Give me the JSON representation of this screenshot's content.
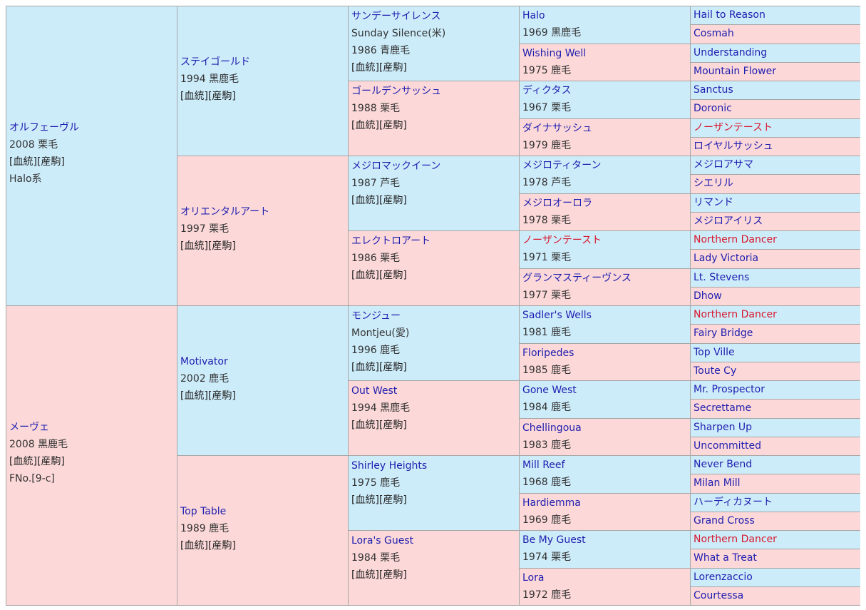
{
  "links": {
    "pedigree": "血統",
    "offspring": "産駒",
    "open": "[",
    "close": "]"
  },
  "gen1": [
    {
      "name": "オルフェーヴル",
      "info": "2008 栗毛",
      "extra": "Halo系"
    },
    {
      "name": "メーヴェ",
      "info": "2008 黒鹿毛",
      "extra": "FNo.[9-c]"
    }
  ],
  "gen2": [
    {
      "name": "ステイゴールド",
      "info": "1994 黒鹿毛"
    },
    {
      "name": "オリエンタルアート",
      "info": "1997 栗毛"
    },
    {
      "name": "Motivator",
      "info": "2002 鹿毛"
    },
    {
      "name": "Top Table",
      "info": "1989 鹿毛"
    }
  ],
  "gen3": [
    {
      "name": "サンデーサイレンス",
      "alt": "Sunday Silence(米)",
      "info": "1986 青鹿毛"
    },
    {
      "name": "ゴールデンサッシュ",
      "info": "1988 栗毛"
    },
    {
      "name": "メジロマックイーン",
      "info": "1987 芦毛"
    },
    {
      "name": "エレクトロアート",
      "info": "1986 栗毛"
    },
    {
      "name": "モンジュー",
      "alt": "Montjeu(愛)",
      "info": "1996 鹿毛"
    },
    {
      "name": "Out West",
      "info": "1994 黒鹿毛"
    },
    {
      "name": "Shirley Heights",
      "info": "1975 鹿毛"
    },
    {
      "name": "Lora's Guest",
      "info": "1984 栗毛"
    }
  ],
  "gen4": [
    {
      "name": "Halo",
      "info": "1969 黒鹿毛"
    },
    {
      "name": "Wishing Well",
      "info": "1975 鹿毛"
    },
    {
      "name": "ディクタス",
      "info": "1967 栗毛"
    },
    {
      "name": "ダイナサッシュ",
      "info": "1979 鹿毛"
    },
    {
      "name": "メジロティターン",
      "info": "1978 芦毛"
    },
    {
      "name": "メジロオーロラ",
      "info": "1978 栗毛"
    },
    {
      "name": "ノーザンテースト",
      "info": "1971 栗毛"
    },
    {
      "name": "グランマスティーヴンス",
      "info": "1977 栗毛"
    },
    {
      "name": "Sadler's Wells",
      "info": "1981 鹿毛"
    },
    {
      "name": "Floripedes",
      "info": "1985 鹿毛"
    },
    {
      "name": "Gone West",
      "info": "1984 鹿毛"
    },
    {
      "name": "Chellingoua",
      "info": "1983 鹿毛"
    },
    {
      "name": "Mill Reef",
      "info": "1968 鹿毛"
    },
    {
      "name": "Hardiemma",
      "info": "1969 鹿毛"
    },
    {
      "name": "Be My Guest",
      "info": "1974 栗毛"
    },
    {
      "name": "Lora",
      "info": "1972 鹿毛"
    }
  ],
  "gen5": [
    {
      "name": "Hail to Reason"
    },
    {
      "name": "Cosmah"
    },
    {
      "name": "Understanding"
    },
    {
      "name": "Mountain Flower"
    },
    {
      "name": "Sanctus"
    },
    {
      "name": "Doronic"
    },
    {
      "name": "ノーザンテースト"
    },
    {
      "name": "ロイヤルサッシュ"
    },
    {
      "name": "メジロアサマ"
    },
    {
      "name": "シエリル"
    },
    {
      "name": "リマンド"
    },
    {
      "name": "メジロアイリス"
    },
    {
      "name": "Northern Dancer"
    },
    {
      "name": "Lady Victoria"
    },
    {
      "name": "Lt. Stevens"
    },
    {
      "name": "Dhow"
    },
    {
      "name": "Northern Dancer"
    },
    {
      "name": "Fairy Bridge"
    },
    {
      "name": "Top Ville"
    },
    {
      "name": "Toute Cy"
    },
    {
      "name": "Mr. Prospector"
    },
    {
      "name": "Secrettame"
    },
    {
      "name": "Sharpen Up"
    },
    {
      "name": "Uncommitted"
    },
    {
      "name": "Never Bend"
    },
    {
      "name": "Milan Mill"
    },
    {
      "name": "ハーディカヌート"
    },
    {
      "name": "Grand Cross"
    },
    {
      "name": "Northern Dancer"
    },
    {
      "name": "What a Treat"
    },
    {
      "name": "Lorenzaccio"
    },
    {
      "name": "Courtessa"
    }
  ],
  "colors": {
    "male_bg": "#cdecfa",
    "female_bg": "#fcd8d8",
    "name_link": "#2020b0",
    "inbreed_name": "#d8182c",
    "grid": "#a6a6a6"
  }
}
